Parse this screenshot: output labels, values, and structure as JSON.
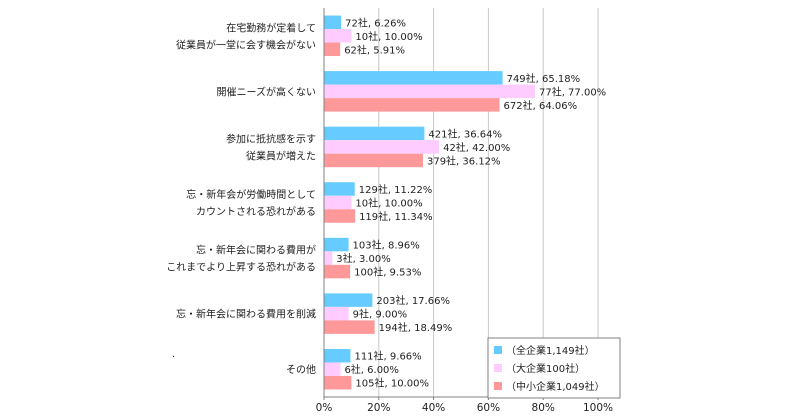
{
  "chart_data": {
    "type": "bar",
    "orientation": "horizontal",
    "title": "",
    "xlabel": "",
    "ylabel": "",
    "xlim": [
      0,
      100
    ],
    "x_ticks": [
      "0%",
      "20%",
      "40%",
      "60%",
      "80%",
      "100%"
    ],
    "x_tick_values": [
      0,
      20,
      40,
      60,
      80,
      100
    ],
    "grid": "vertical",
    "legend_position": "bottom-right",
    "categories": [
      [
        "在宅勤務が定着して",
        "従業員が一堂に会す機会がない"
      ],
      [
        "開催ニーズが高くない"
      ],
      [
        "参加に抵抗感を示す",
        "従業員が増えた"
      ],
      [
        "忘・新年会が労働時間として",
        "カウントされる恐れがある"
      ],
      [
        "忘・新年会に関わる費用が",
        "これまでより上昇する恐れがある"
      ],
      [
        "忘・新年会に関わる費用を削減"
      ],
      [
        "その他"
      ]
    ],
    "series": [
      {
        "name": "（全企業1,149社）",
        "color": "#66ccff",
        "values": [
          6.26,
          65.18,
          36.64,
          11.22,
          8.96,
          17.66,
          9.66
        ],
        "labels": [
          "72社, 6.26%",
          "749社, 65.18%",
          "421社, 36.64%",
          "129社, 11.22%",
          "103社, 8.96%",
          "203社, 17.66%",
          "111社, 9.66%"
        ]
      },
      {
        "name": "（大企業100社）",
        "color": "#ffccff",
        "values": [
          10.0,
          77.0,
          42.0,
          10.0,
          3.0,
          9.0,
          6.0
        ],
        "labels": [
          "10社, 10.00%",
          "77社, 77.00%",
          "42社, 42.00%",
          "10社, 10.00%",
          "3社, 3.00%",
          "9社, 9.00%",
          "6社, 6.00%"
        ]
      },
      {
        "name": "（中小企業1,049社）",
        "color": "#ff9999",
        "values": [
          5.91,
          64.06,
          36.12,
          11.34,
          9.53,
          18.49,
          10.0
        ],
        "labels": [
          "62社, 5.91%",
          "672社, 64.06%",
          "379社, 36.12%",
          "119社, 11.34%",
          "100社, 9.53%",
          "194社, 18.49%",
          "105社, 10.00%"
        ]
      }
    ],
    "stray_mark": "."
  }
}
